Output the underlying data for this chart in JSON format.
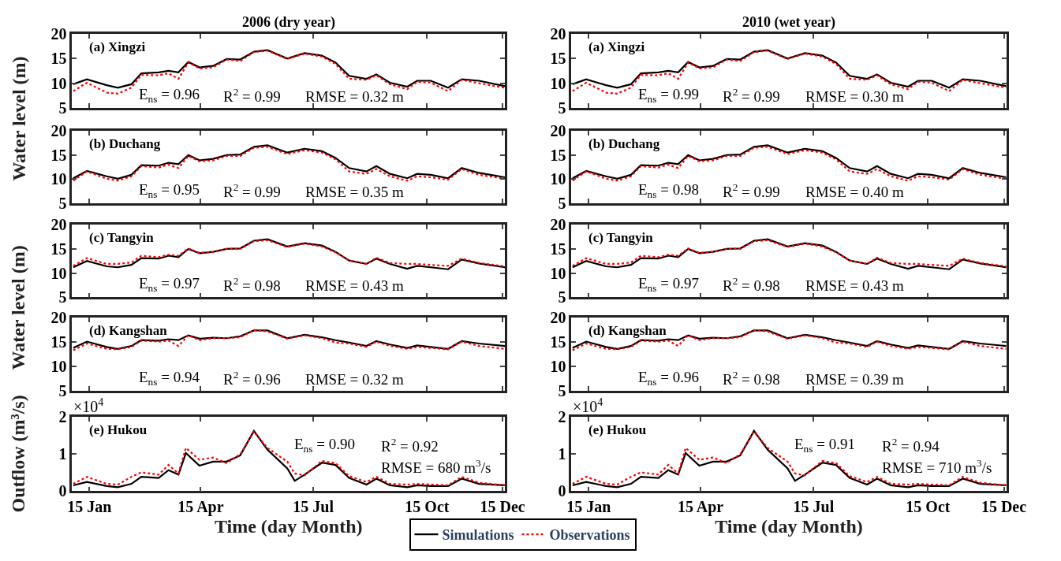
{
  "chart_data": [
    {
      "type": "line",
      "title": "2006 (dry year)",
      "ylabel": "Water level (m)",
      "x": [
        "--01-02",
        "--01-13",
        "--01-29",
        "--02-07",
        "--02-18",
        "--02-26",
        "--03-12",
        "--03-20",
        "--03-28",
        "--04-05",
        "--04-14",
        "--04-25",
        "--05-06",
        "--05-17",
        "--05-28",
        "--06-08",
        "--06-24",
        "--07-08",
        "--07-22",
        "--08-02",
        "--08-13",
        "--08-27",
        "--09-04",
        "--09-15",
        "--09-29",
        "--10-07",
        "--10-18",
        "--11-01",
        "--11-12",
        "--11-26",
        "--12-17"
      ],
      "xlim": [
        "--01-01",
        "--12-17"
      ],
      "xticks": [
        {
          "value": "--01-15",
          "label": "15 Jan"
        },
        {
          "value": "--04-15",
          "label": "15 Apr"
        },
        {
          "value": "--07-15",
          "label": "15 Jul"
        },
        {
          "value": "--10-15",
          "label": "15 Oct"
        },
        {
          "value": "--12-15",
          "label": "15 Dec"
        }
      ],
      "ylim": [
        5,
        20
      ],
      "yticks": [
        5,
        10,
        15,
        20
      ],
      "tick_labels": "y",
      "annotations": [
        "(a) Xingzi",
        "E$_{ns}$ = 0.96",
        "R$^{2}$ = 0.99",
        "RMSE = 0.32 m"
      ],
      "series": [
        {
          "color": "#000000",
          "line_style": "solid",
          "values": [
            9.8,
            10.8,
            9.6,
            9.1,
            9.8,
            12.0,
            12.2,
            12.5,
            12.2,
            14.3,
            13.2,
            13.5,
            14.9,
            14.8,
            16.4,
            16.7,
            15.0,
            16.1,
            15.6,
            14.2,
            11.5,
            10.9,
            11.8,
            10.1,
            9.3,
            10.5,
            10.5,
            9.1,
            10.8,
            10.5,
            9.4
          ]
        },
        {
          "color": "#ff0000",
          "line_style": "dotted",
          "values": [
            8.4,
            10.1,
            8.1,
            7.9,
            9.1,
            11.7,
            11.6,
            12.0,
            10.9,
            14.2,
            13.0,
            13.2,
            14.8,
            14.5,
            16.3,
            16.6,
            14.9,
            16.0,
            15.4,
            13.9,
            10.9,
            10.7,
            11.6,
            9.8,
            8.8,
            10.3,
            10.1,
            8.4,
            10.7,
            10.0,
            9.1
          ]
        }
      ]
    },
    {
      "type": "line",
      "title": "2010 (wet year)",
      "x": [
        "--01-02",
        "--01-13",
        "--01-29",
        "--02-07",
        "--02-18",
        "--02-26",
        "--03-12",
        "--03-20",
        "--03-28",
        "--04-05",
        "--04-14",
        "--04-25",
        "--05-06",
        "--05-17",
        "--05-28",
        "--06-08",
        "--06-24",
        "--07-08",
        "--07-22",
        "--08-02",
        "--08-13",
        "--08-27",
        "--09-04",
        "--09-15",
        "--09-29",
        "--10-07",
        "--10-18",
        "--11-01",
        "--11-12",
        "--11-26",
        "--12-17"
      ],
      "xlim": [
        "--01-01",
        "--12-17"
      ],
      "xticks": [
        {
          "value": "--01-15",
          "label": "15 Jan"
        },
        {
          "value": "--04-15",
          "label": "15 Apr"
        },
        {
          "value": "--07-15",
          "label": "15 Jul"
        },
        {
          "value": "--10-15",
          "label": "15 Oct"
        },
        {
          "value": "--12-15",
          "label": "15 Dec"
        }
      ],
      "ylim": [
        5,
        20
      ],
      "yticks": [
        5,
        10,
        15,
        20
      ],
      "tick_labels": "y",
      "annotations": [
        "(a) Xingzi",
        "E$_{ns}$ = 0.99",
        "R$^{2}$ = 0.99",
        "RMSE = 0.30 m"
      ],
      "series": [
        {
          "color": "#000000",
          "line_style": "solid",
          "values": [
            9.8,
            10.8,
            9.6,
            9.1,
            9.8,
            12.0,
            12.2,
            12.5,
            12.2,
            14.3,
            13.2,
            13.5,
            14.9,
            14.8,
            16.4,
            16.7,
            15.0,
            16.1,
            15.6,
            14.2,
            11.5,
            10.9,
            11.8,
            10.1,
            9.3,
            10.5,
            10.5,
            9.1,
            10.8,
            10.5,
            9.4
          ]
        },
        {
          "color": "#ff0000",
          "line_style": "dotted",
          "values": [
            8.4,
            10.1,
            8.1,
            7.9,
            9.1,
            11.7,
            11.6,
            12.0,
            10.9,
            14.2,
            13.0,
            13.2,
            14.8,
            14.5,
            16.3,
            16.6,
            14.9,
            16.0,
            15.4,
            13.9,
            10.9,
            10.7,
            11.6,
            9.8,
            8.8,
            10.3,
            10.1,
            8.4,
            10.7,
            10.0,
            9.1
          ]
        }
      ]
    },
    {
      "type": "line",
      "x": [
        "--01-02",
        "--01-13",
        "--01-29",
        "--02-07",
        "--02-18",
        "--02-26",
        "--03-12",
        "--03-20",
        "--03-28",
        "--04-05",
        "--04-14",
        "--04-25",
        "--05-06",
        "--05-17",
        "--05-28",
        "--06-08",
        "--06-24",
        "--07-08",
        "--07-22",
        "--08-02",
        "--08-13",
        "--08-27",
        "--09-04",
        "--09-15",
        "--09-29",
        "--10-07",
        "--10-18",
        "--11-01",
        "--11-12",
        "--11-26",
        "--12-17"
      ],
      "xlim": [
        "--01-01",
        "--12-17"
      ],
      "xticks": [
        {
          "value": "--01-15",
          "label": "15 Jan"
        },
        {
          "value": "--04-15",
          "label": "15 Apr"
        },
        {
          "value": "--07-15",
          "label": "15 Jul"
        },
        {
          "value": "--10-15",
          "label": "15 Oct"
        },
        {
          "value": "--12-15",
          "label": "15 Dec"
        }
      ],
      "ylim": [
        5,
        20
      ],
      "yticks": [
        5,
        10,
        15,
        20
      ],
      "tick_labels": "y",
      "annotations": [
        "(b) Duchang",
        "E$_{ns}$ = 0.95",
        "R$^{2}$ = 0.99",
        "RMSE = 0.35 m"
      ],
      "series": [
        {
          "color": "#000000",
          "line_style": "solid",
          "values": [
            10.2,
            11.7,
            10.6,
            10.1,
            10.9,
            12.9,
            12.8,
            13.4,
            13.1,
            15.0,
            13.9,
            14.2,
            15.0,
            15.1,
            16.7,
            17.0,
            15.5,
            16.3,
            15.8,
            14.4,
            12.3,
            11.6,
            12.7,
            11.1,
            10.2,
            11.1,
            10.9,
            10.2,
            12.3,
            11.3,
            10.4
          ]
        },
        {
          "color": "#ff0000",
          "line_style": "dotted",
          "values": [
            9.7,
            11.6,
            10.1,
            9.7,
            10.6,
            12.7,
            12.4,
            13.0,
            12.3,
            14.8,
            13.7,
            13.9,
            14.8,
            14.8,
            16.5,
            16.7,
            15.2,
            16.0,
            15.5,
            14.1,
            11.6,
            11.1,
            12.1,
            10.6,
            9.7,
            10.6,
            10.4,
            9.9,
            12.1,
            10.9,
            10.1
          ]
        }
      ]
    },
    {
      "type": "line",
      "x": [
        "--01-02",
        "--01-13",
        "--01-29",
        "--02-07",
        "--02-18",
        "--02-26",
        "--03-12",
        "--03-20",
        "--03-28",
        "--04-05",
        "--04-14",
        "--04-25",
        "--05-06",
        "--05-17",
        "--05-28",
        "--06-08",
        "--06-24",
        "--07-08",
        "--07-22",
        "--08-02",
        "--08-13",
        "--08-27",
        "--09-04",
        "--09-15",
        "--09-29",
        "--10-07",
        "--10-18",
        "--11-01",
        "--11-12",
        "--11-26",
        "--12-17"
      ],
      "xlim": [
        "--01-01",
        "--12-17"
      ],
      "xticks": [
        {
          "value": "--01-15",
          "label": "15 Jan"
        },
        {
          "value": "--04-15",
          "label": "15 Apr"
        },
        {
          "value": "--07-15",
          "label": "15 Jul"
        },
        {
          "value": "--10-15",
          "label": "15 Oct"
        },
        {
          "value": "--12-15",
          "label": "15 Dec"
        }
      ],
      "ylim": [
        5,
        20
      ],
      "yticks": [
        5,
        10,
        15,
        20
      ],
      "tick_labels": "y",
      "annotations": [
        "(b) Duchang",
        "E$_{ns}$ = 0.98",
        "R$^{2}$ = 0.99",
        "RMSE = 0.40 m"
      ],
      "series": [
        {
          "color": "#000000",
          "line_style": "solid",
          "values": [
            10.2,
            11.7,
            10.6,
            10.1,
            10.9,
            12.9,
            12.8,
            13.4,
            13.1,
            15.0,
            13.9,
            14.2,
            15.0,
            15.1,
            16.7,
            17.0,
            15.5,
            16.3,
            15.8,
            14.4,
            12.3,
            11.6,
            12.7,
            11.1,
            10.2,
            11.1,
            10.9,
            10.2,
            12.3,
            11.3,
            10.4
          ]
        },
        {
          "color": "#ff0000",
          "line_style": "dotted",
          "values": [
            9.7,
            11.6,
            10.1,
            9.7,
            10.6,
            12.7,
            12.4,
            13.0,
            12.3,
            14.8,
            13.7,
            13.9,
            14.8,
            14.8,
            16.5,
            16.7,
            15.2,
            16.0,
            15.5,
            14.1,
            11.6,
            11.1,
            12.1,
            10.6,
            9.7,
            10.6,
            10.4,
            9.9,
            12.1,
            10.9,
            10.1
          ]
        }
      ]
    },
    {
      "type": "line",
      "ylabel": "Water level (m)",
      "x": [
        "--01-02",
        "--01-13",
        "--01-29",
        "--02-07",
        "--02-18",
        "--02-26",
        "--03-12",
        "--03-20",
        "--03-28",
        "--04-05",
        "--04-14",
        "--04-25",
        "--05-06",
        "--05-17",
        "--05-28",
        "--06-08",
        "--06-24",
        "--07-08",
        "--07-22",
        "--08-02",
        "--08-13",
        "--08-27",
        "--09-04",
        "--09-15",
        "--09-29",
        "--10-07",
        "--10-18",
        "--11-01",
        "--11-12",
        "--11-26",
        "--12-17"
      ],
      "xlim": [
        "--01-01",
        "--12-17"
      ],
      "xticks": [
        {
          "value": "--01-15",
          "label": "15 Jan"
        },
        {
          "value": "--04-15",
          "label": "15 Apr"
        },
        {
          "value": "--07-15",
          "label": "15 Jul"
        },
        {
          "value": "--10-15",
          "label": "15 Oct"
        },
        {
          "value": "--12-15",
          "label": "15 Dec"
        }
      ],
      "ylim": [
        5,
        20
      ],
      "yticks": [
        5,
        10,
        15,
        20
      ],
      "tick_labels": "y",
      "annotations": [
        "(c) Tangyin",
        "E$_{ns}$ = 0.97",
        "R$^{2}$ = 0.98",
        "RMSE = 0.43 m"
      ],
      "series": [
        {
          "color": "#000000",
          "line_style": "solid",
          "values": [
            11.2,
            12.5,
            11.4,
            11.2,
            11.7,
            13.1,
            13.0,
            13.6,
            13.3,
            15.0,
            14.1,
            14.4,
            15.0,
            15.1,
            16.7,
            17.0,
            15.5,
            16.2,
            15.7,
            14.4,
            12.6,
            11.9,
            13.0,
            11.9,
            10.9,
            11.5,
            11.2,
            10.8,
            12.8,
            12.0,
            11.2
          ]
        },
        {
          "color": "#ff0000",
          "line_style": "dotted",
          "values": [
            11.5,
            13.1,
            11.9,
            11.9,
            12.2,
            13.6,
            13.3,
            13.8,
            13.6,
            15.1,
            14.2,
            14.4,
            15.0,
            15.0,
            16.6,
            16.8,
            15.4,
            16.1,
            15.5,
            14.3,
            12.6,
            11.9,
            13.2,
            12.1,
            11.9,
            11.9,
            11.7,
            11.5,
            13.0,
            12.1,
            11.4
          ]
        }
      ]
    },
    {
      "type": "line",
      "x": [
        "--01-02",
        "--01-13",
        "--01-29",
        "--02-07",
        "--02-18",
        "--02-26",
        "--03-12",
        "--03-20",
        "--03-28",
        "--04-05",
        "--04-14",
        "--04-25",
        "--05-06",
        "--05-17",
        "--05-28",
        "--06-08",
        "--06-24",
        "--07-08",
        "--07-22",
        "--08-02",
        "--08-13",
        "--08-27",
        "--09-04",
        "--09-15",
        "--09-29",
        "--10-07",
        "--10-18",
        "--11-01",
        "--11-12",
        "--11-26",
        "--12-17"
      ],
      "xlim": [
        "--01-01",
        "--12-17"
      ],
      "xticks": [
        {
          "value": "--01-15",
          "label": "15 Jan"
        },
        {
          "value": "--04-15",
          "label": "15 Apr"
        },
        {
          "value": "--07-15",
          "label": "15 Jul"
        },
        {
          "value": "--10-15",
          "label": "15 Oct"
        },
        {
          "value": "--12-15",
          "label": "15 Dec"
        }
      ],
      "ylim": [
        5,
        20
      ],
      "yticks": [
        5,
        10,
        15,
        20
      ],
      "tick_labels": "y",
      "annotations": [
        "(c) Tangyin",
        "E$_{ns}$ = 0.97",
        "R$^{2}$ = 0.98",
        "RMSE = 0.43 m"
      ],
      "series": [
        {
          "color": "#000000",
          "line_style": "solid",
          "values": [
            11.2,
            12.5,
            11.4,
            11.2,
            11.7,
            13.1,
            13.0,
            13.6,
            13.3,
            15.0,
            14.1,
            14.4,
            15.0,
            15.1,
            16.7,
            17.0,
            15.5,
            16.2,
            15.7,
            14.4,
            12.6,
            11.9,
            13.0,
            11.9,
            10.9,
            11.5,
            11.2,
            10.8,
            12.8,
            12.0,
            11.2
          ]
        },
        {
          "color": "#ff0000",
          "line_style": "dotted",
          "values": [
            11.5,
            13.1,
            11.9,
            11.9,
            12.2,
            13.6,
            13.3,
            13.8,
            13.6,
            15.1,
            14.2,
            14.4,
            15.0,
            15.0,
            16.6,
            16.8,
            15.4,
            16.1,
            15.5,
            14.3,
            12.6,
            11.9,
            13.2,
            12.1,
            11.9,
            11.9,
            11.7,
            11.5,
            13.0,
            12.1,
            11.4
          ]
        }
      ]
    },
    {
      "type": "line",
      "x": [
        "--01-02",
        "--01-13",
        "--01-29",
        "--02-07",
        "--02-18",
        "--02-26",
        "--03-12",
        "--03-20",
        "--03-28",
        "--04-05",
        "--04-14",
        "--04-25",
        "--05-06",
        "--05-17",
        "--05-28",
        "--06-08",
        "--06-24",
        "--07-08",
        "--07-22",
        "--08-02",
        "--08-13",
        "--08-27",
        "--09-04",
        "--09-15",
        "--09-29",
        "--10-07",
        "--10-18",
        "--11-01",
        "--11-12",
        "--11-26",
        "--12-17"
      ],
      "xlim": [
        "--01-01",
        "--12-17"
      ],
      "xticks": [
        {
          "value": "--01-15",
          "label": "15 Jan"
        },
        {
          "value": "--04-15",
          "label": "15 Apr"
        },
        {
          "value": "--07-15",
          "label": "15 Jul"
        },
        {
          "value": "--10-15",
          "label": "15 Oct"
        },
        {
          "value": "--12-15",
          "label": "15 Dec"
        }
      ],
      "ylim": [
        5,
        20
      ],
      "yticks": [
        5,
        10,
        15,
        20
      ],
      "tick_labels": "y",
      "annotations": [
        "(d) Kangshan",
        "E$_{ns}$ = 0.94",
        "R$^{2}$ = 0.96",
        "RMSE = 0.32 m"
      ],
      "series": [
        {
          "color": "#000000",
          "line_style": "solid",
          "values": [
            13.8,
            15.1,
            14.0,
            13.6,
            14.2,
            15.4,
            15.3,
            15.6,
            15.4,
            16.4,
            15.7,
            15.9,
            15.8,
            16.2,
            17.4,
            17.4,
            15.8,
            16.5,
            16.0,
            15.4,
            14.9,
            14.2,
            15.2,
            14.5,
            13.8,
            14.3,
            14.0,
            13.6,
            15.2,
            14.7,
            14.2
          ]
        },
        {
          "color": "#ff0000",
          "line_style": "dotted",
          "values": [
            13.3,
            14.7,
            13.6,
            13.5,
            14.0,
            15.3,
            15.1,
            15.3,
            14.2,
            16.4,
            15.4,
            15.8,
            15.8,
            16.0,
            17.5,
            17.2,
            15.7,
            16.4,
            15.8,
            14.9,
            14.7,
            14.0,
            15.1,
            14.2,
            13.6,
            14.0,
            13.8,
            13.5,
            15.1,
            14.2,
            13.6
          ]
        }
      ]
    },
    {
      "type": "line",
      "x": [
        "--01-02",
        "--01-13",
        "--01-29",
        "--02-07",
        "--02-18",
        "--02-26",
        "--03-12",
        "--03-20",
        "--03-28",
        "--04-05",
        "--04-14",
        "--04-25",
        "--05-06",
        "--05-17",
        "--05-28",
        "--06-08",
        "--06-24",
        "--07-08",
        "--07-22",
        "--08-02",
        "--08-13",
        "--08-27",
        "--09-04",
        "--09-15",
        "--09-29",
        "--10-07",
        "--10-18",
        "--11-01",
        "--11-12",
        "--11-26",
        "--12-17"
      ],
      "xlim": [
        "--01-01",
        "--12-17"
      ],
      "xticks": [
        {
          "value": "--01-15",
          "label": "15 Jan"
        },
        {
          "value": "--04-15",
          "label": "15 Apr"
        },
        {
          "value": "--07-15",
          "label": "15 Jul"
        },
        {
          "value": "--10-15",
          "label": "15 Oct"
        },
        {
          "value": "--12-15",
          "label": "15 Dec"
        }
      ],
      "ylim": [
        5,
        20
      ],
      "yticks": [
        5,
        10,
        15,
        20
      ],
      "tick_labels": "y",
      "annotations": [
        "(d) Kangshan",
        "E$_{ns}$ = 0.96",
        "R$^{2}$ = 0.98",
        "RMSE = 0.39 m"
      ],
      "series": [
        {
          "color": "#000000",
          "line_style": "solid",
          "values": [
            13.8,
            15.1,
            14.0,
            13.6,
            14.2,
            15.4,
            15.3,
            15.6,
            15.4,
            16.4,
            15.7,
            15.9,
            15.8,
            16.2,
            17.4,
            17.4,
            15.8,
            16.5,
            16.0,
            15.4,
            14.9,
            14.2,
            15.2,
            14.5,
            13.8,
            14.3,
            14.0,
            13.6,
            15.2,
            14.7,
            14.2
          ]
        },
        {
          "color": "#ff0000",
          "line_style": "dotted",
          "values": [
            13.3,
            14.7,
            13.6,
            13.5,
            14.0,
            15.3,
            15.1,
            15.3,
            14.2,
            16.4,
            15.4,
            15.8,
            15.8,
            16.0,
            17.5,
            17.2,
            15.7,
            16.4,
            15.8,
            14.9,
            14.7,
            14.0,
            15.1,
            14.2,
            13.6,
            14.0,
            13.8,
            13.5,
            15.1,
            14.2,
            13.6
          ]
        }
      ]
    },
    {
      "type": "line",
      "ylabel": "Outflow (m³/s)",
      "xlabel": "Time (day Month)",
      "legend": "bottom",
      "x": [
        "--01-02",
        "--01-13",
        "--01-29",
        "--02-07",
        "--02-18",
        "--02-26",
        "--03-12",
        "--03-20",
        "--03-28",
        "--04-03",
        "--04-14",
        "--04-25",
        "--05-06",
        "--05-17",
        "--05-28",
        "--06-08",
        "--06-24",
        "--06-30",
        "--07-08",
        "--07-22",
        "--08-02",
        "--08-13",
        "--08-27",
        "--09-04",
        "--09-15",
        "--09-29",
        "--10-07",
        "--10-18",
        "--11-01",
        "--11-12",
        "--11-26",
        "--12-17"
      ],
      "xlim": [
        "--01-01",
        "--12-17"
      ],
      "xticks": [
        {
          "value": "--01-15",
          "label": "15 Jan"
        },
        {
          "value": "--04-15",
          "label": "15 Apr"
        },
        {
          "value": "--07-15",
          "label": "15 Jul"
        },
        {
          "value": "--10-15",
          "label": "15 Oct"
        },
        {
          "value": "--12-15",
          "label": "15 Dec"
        }
      ],
      "ylim": [
        0,
        2
      ],
      "yticks": [
        0,
        1,
        2
      ],
      "annotations": [
        "(e) Hukou",
        "×10$^{4}$",
        "E$_{ns}$ = 0.90",
        "R$^{2}$ = 0.92",
        "RMSE = 680 m$^{3}$/s"
      ],
      "series": [
        {
          "name": "Simulations",
          "color": "#000000",
          "line_style": "solid",
          "values": [
            0.16,
            0.25,
            0.14,
            0.11,
            0.2,
            0.39,
            0.36,
            0.57,
            0.45,
            1.03,
            0.69,
            0.8,
            0.8,
            0.97,
            1.63,
            1.12,
            0.62,
            0.28,
            0.45,
            0.77,
            0.71,
            0.36,
            0.18,
            0.34,
            0.16,
            0.11,
            0.16,
            0.14,
            0.14,
            0.34,
            0.2,
            0.16
          ]
        },
        {
          "name": "Observations",
          "color": "#ff0000",
          "line_style": "dotted",
          "values": [
            0.2,
            0.39,
            0.2,
            0.18,
            0.39,
            0.51,
            0.45,
            0.71,
            0.48,
            1.17,
            0.85,
            0.91,
            0.76,
            1.0,
            1.61,
            1.17,
            0.8,
            0.48,
            0.43,
            0.82,
            0.76,
            0.41,
            0.25,
            0.39,
            0.2,
            0.18,
            0.2,
            0.18,
            0.16,
            0.39,
            0.23,
            0.16
          ]
        }
      ]
    },
    {
      "type": "line",
      "xlabel": "Time (day Month)",
      "x": [
        "--01-02",
        "--01-13",
        "--01-29",
        "--02-07",
        "--02-18",
        "--02-26",
        "--03-12",
        "--03-20",
        "--03-28",
        "--04-03",
        "--04-14",
        "--04-25",
        "--05-06",
        "--05-17",
        "--05-28",
        "--06-08",
        "--06-24",
        "--06-30",
        "--07-08",
        "--07-22",
        "--08-02",
        "--08-13",
        "--08-27",
        "--09-04",
        "--09-15",
        "--09-29",
        "--10-07",
        "--10-18",
        "--11-01",
        "--11-12",
        "--11-26",
        "--12-17"
      ],
      "xlim": [
        "--01-01",
        "--12-17"
      ],
      "xticks": [
        {
          "value": "--01-15",
          "label": "15 Jan"
        },
        {
          "value": "--04-15",
          "label": "15 Apr"
        },
        {
          "value": "--07-15",
          "label": "15 Jul"
        },
        {
          "value": "--10-15",
          "label": "15 Oct"
        },
        {
          "value": "--12-15",
          "label": "15 Dec"
        }
      ],
      "ylim": [
        0,
        2
      ],
      "yticks": [
        0,
        1,
        2
      ],
      "annotations": [
        "(e) Hukou",
        "×10$^{4}$",
        "E$_{ns}$ = 0.91",
        "R$^{2}$ = 0.94",
        "RMSE = 710 m$^{3}$/s"
      ],
      "series": [
        {
          "color": "#000000",
          "line_style": "solid",
          "values": [
            0.16,
            0.25,
            0.14,
            0.11,
            0.2,
            0.39,
            0.36,
            0.57,
            0.45,
            1.03,
            0.69,
            0.8,
            0.8,
            0.97,
            1.63,
            1.12,
            0.62,
            0.28,
            0.45,
            0.77,
            0.71,
            0.36,
            0.18,
            0.34,
            0.16,
            0.11,
            0.16,
            0.14,
            0.14,
            0.34,
            0.2,
            0.16
          ]
        },
        {
          "color": "#ff0000",
          "line_style": "dotted",
          "values": [
            0.2,
            0.39,
            0.2,
            0.18,
            0.39,
            0.51,
            0.45,
            0.71,
            0.48,
            1.17,
            0.85,
            0.91,
            0.76,
            1.0,
            1.61,
            1.17,
            0.8,
            0.48,
            0.43,
            0.82,
            0.76,
            0.41,
            0.25,
            0.39,
            0.2,
            0.18,
            0.2,
            0.18,
            0.16,
            0.39,
            0.23,
            0.16
          ]
        }
      ]
    }
  ]
}
